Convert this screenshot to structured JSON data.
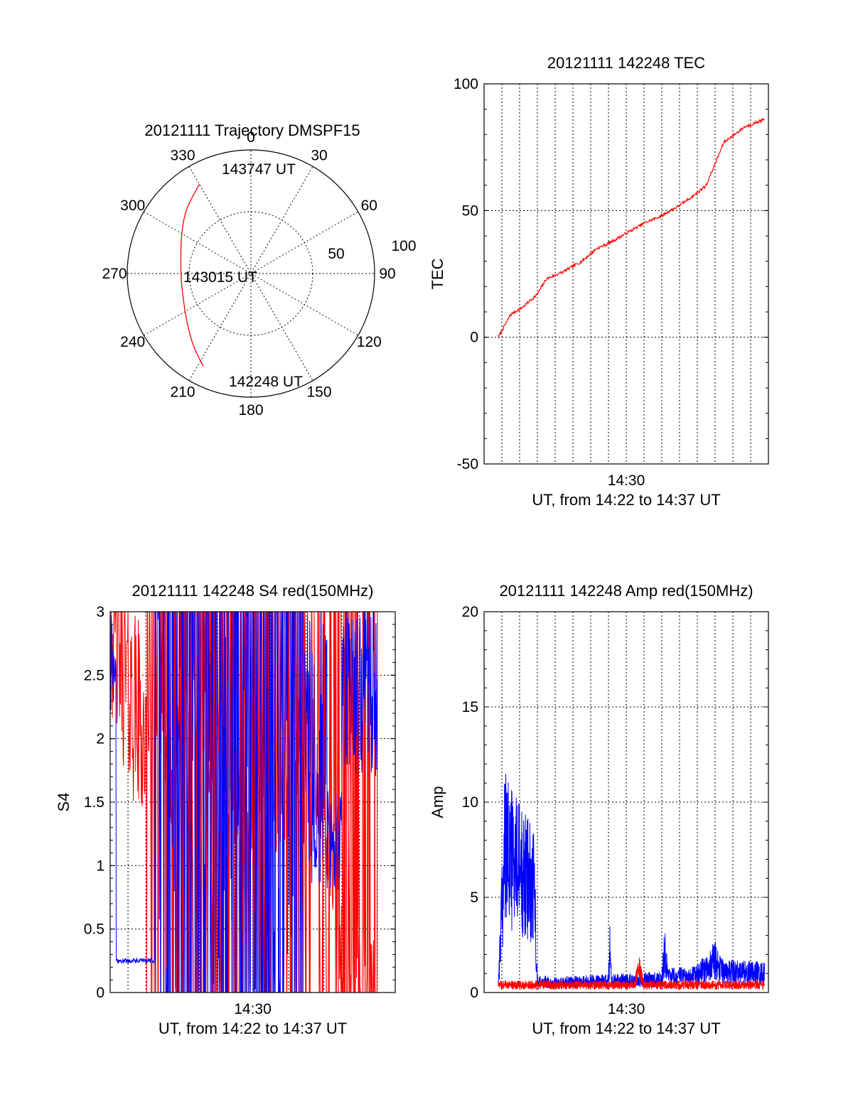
{
  "colors": {
    "red": "#ff0000",
    "blue": "#0000ff",
    "axis": "#000000",
    "background": "#ffffff"
  },
  "chart_data": [
    {
      "id": "trajectory",
      "type": "polar",
      "title": "20121111 Trajectory DMSPF15",
      "angle_labels": [
        "0",
        "30",
        "60",
        "90",
        "120",
        "150",
        "180",
        "210",
        "240",
        "270",
        "300",
        "330"
      ],
      "radial_labels": [
        "50",
        "100"
      ],
      "rlim": [
        0,
        100
      ],
      "grid": true,
      "labels": {
        "start": "142248 UT",
        "middle": "143015 UT",
        "end": "143747 UT"
      },
      "series": [
        {
          "color": "#ff0000",
          "points": [
            {
              "az": 207,
              "el": 14
            },
            {
              "az": 218,
              "el": 22
            },
            {
              "az": 232,
              "el": 31
            },
            {
              "az": 248,
              "el": 37
            },
            {
              "az": 265,
              "el": 39
            },
            {
              "az": 281,
              "el": 38
            },
            {
              "az": 297,
              "el": 33
            },
            {
              "az": 312,
              "el": 25
            },
            {
              "az": 322,
              "el": 20
            },
            {
              "az": 330,
              "el": 15
            }
          ]
        }
      ]
    },
    {
      "id": "tec",
      "type": "line",
      "title": "20121111 142248 TEC",
      "ylabel": "TEC",
      "xlabel": "UT, from 14:22 to 14:37 UT",
      "ylim": [
        -50,
        100
      ],
      "yticks": [
        "-50",
        "0",
        "50",
        "100"
      ],
      "xtick_label": "14:30",
      "grid": true,
      "series": [
        {
          "color": "#ff0000",
          "x": [
            "14:22:48",
            "14:23:30",
            "14:24:12",
            "14:25:00",
            "14:25:30",
            "14:26:30",
            "14:27:30",
            "14:28:20",
            "14:29:00",
            "14:30:00",
            "14:31:00",
            "14:32:00",
            "14:33:00",
            "14:34:00",
            "14:34:30",
            "14:35:30",
            "14:36:40",
            "14:37:47"
          ],
          "y": [
            0,
            9,
            12,
            17,
            23,
            26,
            30,
            35,
            37,
            41,
            45,
            48,
            52,
            57,
            60,
            77,
            83,
            86
          ]
        }
      ]
    },
    {
      "id": "s4",
      "type": "line",
      "title": "20121111 142248 S4 red(150MHz)",
      "ylabel": "S4",
      "xlabel": "UT, from 14:22 to 14:37 UT",
      "ylim": [
        0,
        3
      ],
      "yticks": [
        "0",
        "0.5",
        "1",
        "1.5",
        "2",
        "2.5",
        "3"
      ],
      "xtick_label": "14:30",
      "grid": true,
      "series": [
        {
          "color": "#ff0000",
          "x": [
            "14:22:00",
            "14:23:00",
            "14:24:00",
            "14:25:30",
            "14:27:00",
            "14:29:00",
            "14:30:00",
            "14:31:00",
            "14:32:00",
            "14:33:00",
            "14:34:00",
            "14:35:00",
            "14:36:00",
            "14:37:00"
          ],
          "y": [
            3.0,
            2.4,
            2.0,
            1.8,
            2.2,
            1.6,
            1.5,
            1.4,
            1.7,
            2.0,
            1.6,
            0.3,
            0.0,
            0.0
          ]
        },
        {
          "color": "#0000ff",
          "x": [
            "14:22:00",
            "14:22:10",
            "14:22:20",
            "14:23:00",
            "14:24:00",
            "14:24:30",
            "14:26:00",
            "14:28:00",
            "14:30:00",
            "14:32:00",
            "14:33:00",
            "14:34:00",
            "14:35:00",
            "14:36:00",
            "14:37:00"
          ],
          "y": [
            2.8,
            1.6,
            0.25,
            0.24,
            0.26,
            1.5,
            1.5,
            1.5,
            1.5,
            1.5,
            2.4,
            1.2,
            2.6,
            2.7,
            2.6
          ]
        }
      ]
    },
    {
      "id": "amp",
      "type": "line",
      "title": "20121111 142248 Amp red(150MHz)",
      "ylabel": "Amp",
      "xlabel": "UT, from 14:22 to 14:37 UT",
      "ylim": [
        0,
        20
      ],
      "yticks": [
        "0",
        "5",
        "10",
        "15",
        "20"
      ],
      "xtick_label": "14:30",
      "grid": true,
      "series": [
        {
          "color": "#0000ff",
          "x": [
            "14:22:48",
            "14:23:10",
            "14:24:00",
            "14:24:50",
            "14:25:00",
            "14:26:00",
            "14:28:00",
            "14:29:00",
            "14:29:05",
            "14:29:10",
            "14:32:00",
            "14:32:10",
            "14:32:20",
            "14:34:00",
            "14:35:00",
            "14:35:30",
            "14:36:00",
            "14:37:47"
          ],
          "y": [
            0.5,
            7.5,
            6.5,
            5.5,
            0.6,
            0.5,
            0.6,
            0.6,
            2.3,
            0.6,
            0.7,
            2.3,
            0.8,
            0.9,
            1.7,
            1.0,
            1.1,
            1.0
          ]
        },
        {
          "color": "#ff0000",
          "x": [
            "14:22:48",
            "14:24:50",
            "14:30:30",
            "14:30:40",
            "14:31:00",
            "14:37:47"
          ],
          "y": [
            0.4,
            0.4,
            0.4,
            1.4,
            0.4,
            0.4
          ]
        }
      ]
    }
  ]
}
